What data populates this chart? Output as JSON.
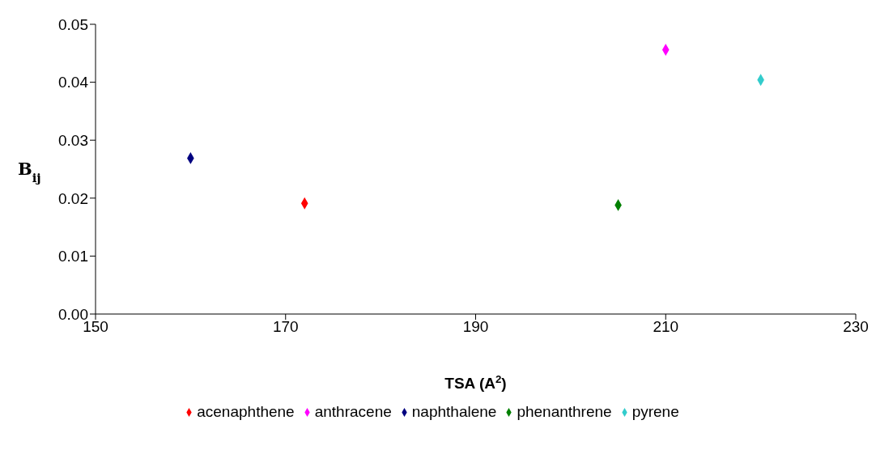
{
  "chart_data": {
    "type": "scatter",
    "xlabel": "TSA (A$^{2}$)",
    "ylabel": "B$_{ij}$",
    "xlim": [
      150,
      230
    ],
    "xticks": [
      150,
      170,
      190,
      210,
      230
    ],
    "ylim": [
      0,
      0.05
    ],
    "yticks": [
      {
        "value": 0,
        "label": "0.00"
      },
      {
        "value": 0.01,
        "label": "0.01"
      },
      {
        "value": 0.02,
        "label": "0.02"
      },
      {
        "value": 0.03,
        "label": "0.03"
      },
      {
        "value": 0.04,
        "label": "0.04"
      },
      {
        "value": 0.05,
        "label": "0.05"
      }
    ],
    "marker": "diamond",
    "legend": "bottom",
    "grid": false,
    "series": [
      {
        "name": "naphthalene",
        "color": "#000080",
        "x": [
          160
        ],
        "values": [
          0.0269
        ]
      },
      {
        "name": "anthracene",
        "color": "#ff00ff",
        "x": [
          210
        ],
        "values": [
          0.0456
        ]
      },
      {
        "name": "pyrene",
        "color": "#33cccc",
        "x": [
          220
        ],
        "values": [
          0.0404
        ]
      },
      {
        "name": "acenaphthene",
        "color": "#ff0000",
        "x": [
          172
        ],
        "values": [
          0.0191
        ]
      },
      {
        "name": "phenanthrene",
        "color": "#008000",
        "x": [
          205
        ],
        "values": [
          0.0188
        ]
      }
    ]
  }
}
